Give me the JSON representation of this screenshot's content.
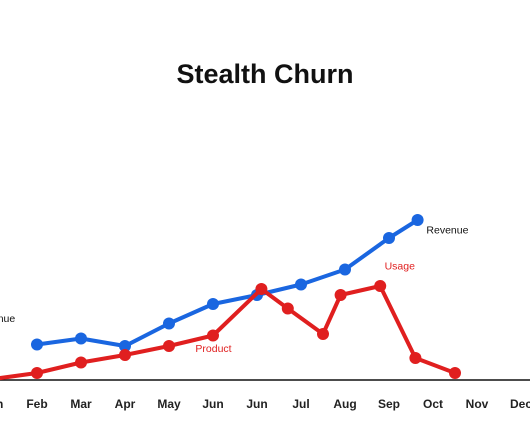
{
  "chart_data": {
    "type": "line",
    "title": "Stealth Churn",
    "xlabel": "",
    "ylabel": "",
    "grid": false,
    "x_ticks": [
      "Jan",
      "Feb",
      "Mar",
      "Apr",
      "May",
      "Jun",
      "Jun",
      "Jul",
      "Aug",
      "Sep",
      "Oct",
      "Nov",
      "Dec"
    ],
    "ylim": [
      0,
      100
    ],
    "series": [
      {
        "name": "Revenue",
        "color": "#1a66e0",
        "points": [
          {
            "x": 1,
            "y": 21
          },
          {
            "x": 2,
            "y": 25
          },
          {
            "x": 3,
            "y": 20
          },
          {
            "x": 4,
            "y": 35
          },
          {
            "x": 5,
            "y": 48
          },
          {
            "x": 6,
            "y": 54
          },
          {
            "x": 7,
            "y": 61
          },
          {
            "x": 8,
            "y": 71
          },
          {
            "x": 9,
            "y": 92
          },
          {
            "x": 9.65,
            "y": 104
          }
        ]
      },
      {
        "name": "Usage",
        "color": "#e01f1f",
        "points": [
          {
            "x": 0,
            "y": -2
          },
          {
            "x": 1,
            "y": 2
          },
          {
            "x": 2,
            "y": 9
          },
          {
            "x": 3,
            "y": 14
          },
          {
            "x": 4,
            "y": 20
          },
          {
            "x": 5,
            "y": 27
          },
          {
            "x": 6.1,
            "y": 58
          },
          {
            "x": 6.7,
            "y": 45
          },
          {
            "x": 7.5,
            "y": 28
          },
          {
            "x": 7.9,
            "y": 54
          },
          {
            "x": 8.8,
            "y": 60
          },
          {
            "x": 9.6,
            "y": 12
          },
          {
            "x": 10.5,
            "y": 2
          }
        ]
      }
    ],
    "annotations": [
      {
        "text": "Revenue",
        "color": "#111111",
        "x": 9.85,
        "y": 95
      },
      {
        "text": "Usage",
        "color": "#e01f1f",
        "x": 8.9,
        "y": 71
      },
      {
        "text": "Revenue",
        "color": "#111111",
        "x": -0.45,
        "y": 36
      },
      {
        "text": "Product",
        "color": "#e01f1f",
        "x": 4.6,
        "y": 16
      }
    ]
  }
}
